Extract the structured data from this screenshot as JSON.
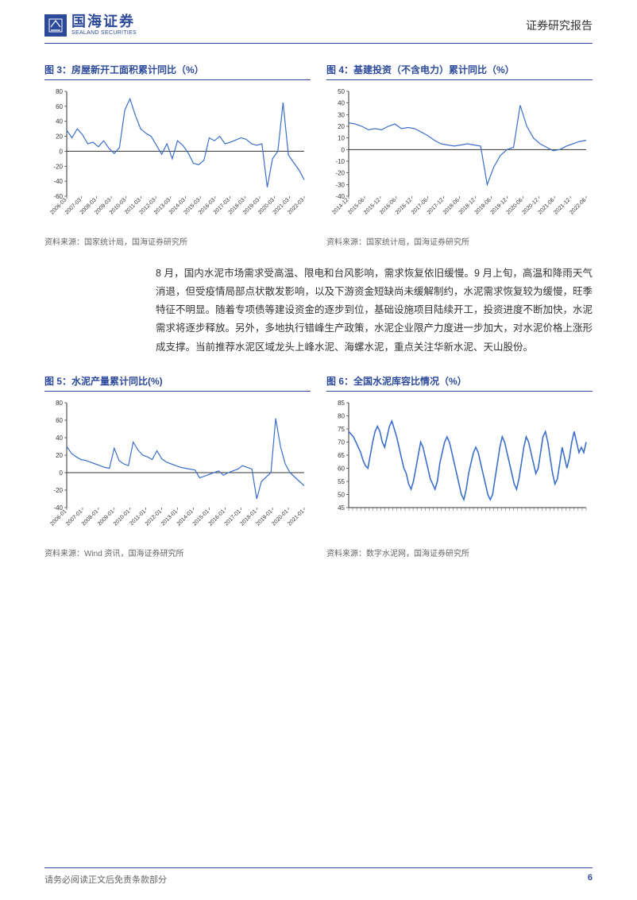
{
  "header": {
    "logo_cn": "国海证券",
    "logo_en": "SEALAND SECURITIES",
    "report_type": "证券研究报告",
    "logo_color": "#2d4a9a"
  },
  "paragraph": "8 月，国内水泥市场需求受高温、限电和台风影响，需求恢复依旧缓慢。9 月上旬，高温和降雨天气消退，但受疫情局部点状散发影响，以及下游资金短缺尚未缓解制约，水泥需求恢复较为缓慢，旺季特征不明显。随着专项债等建设资金的逐步到位，基础设施项目陆续开工，投资进度不断加快，水泥需求将逐步释放。另外，多地执行错峰生产政策，水泥企业限产力度进一步加大，对水泥价格上涨形成支撑。当前推荐水泥区域龙头上峰水泥、海螺水泥，重点关注华新水泥、天山股份。",
  "charts": {
    "c3": {
      "title": "图 3：房屋新开工面积累计同比（%）",
      "source": "资料来源：国家统计局，国海证券研究所",
      "type": "line",
      "ylim": [
        -60,
        80
      ],
      "ytick_step": 20,
      "x_labels": [
        "2006-03",
        "2007-03",
        "2008-03",
        "2009-03",
        "2010-03",
        "2011-03",
        "2012-03",
        "2013-03",
        "2014-03",
        "2015-03",
        "2016-03",
        "2017-03",
        "2018-03",
        "2019-03",
        "2020-03",
        "2021-03",
        "2022-03"
      ],
      "line_color": "#3b6fc9",
      "grid_color": "#333333",
      "background_color": "#ffffff",
      "axis_fontsize": 8,
      "values": [
        28,
        18,
        30,
        22,
        10,
        12,
        6,
        14,
        4,
        -3,
        5,
        55,
        70,
        48,
        30,
        24,
        20,
        8,
        -4,
        10,
        -10,
        14,
        8,
        -2,
        -16,
        -18,
        -12,
        18,
        14,
        20,
        10,
        12,
        15,
        18,
        16,
        10,
        8,
        10,
        -48,
        -10,
        0,
        65,
        -5,
        -15,
        -25,
        -38
      ]
    },
    "c4": {
      "title": "图 4：基建投资（不含电力）累计同比（%）",
      "source": "资料来源：国家统计局，国海证券研究所",
      "type": "line",
      "ylim": [
        -40,
        50
      ],
      "ytick_step": 10,
      "x_labels": [
        "2014-12",
        "2015-06",
        "2015-12",
        "2016-06",
        "2016-12",
        "2017-06",
        "2017-12",
        "2018-06",
        "2018-12",
        "2019-06",
        "2019-12",
        "2020-06",
        "2020-12",
        "2021-06",
        "2021-12",
        "2022-06"
      ],
      "line_color": "#3b6fc9",
      "grid_color": "#333333",
      "background_color": "#ffffff",
      "axis_fontsize": 8,
      "values": [
        23,
        22,
        20,
        17,
        18,
        17,
        20,
        22,
        18,
        19,
        18,
        15,
        12,
        8,
        5,
        4,
        3,
        4,
        5,
        4,
        3,
        -30,
        -15,
        -5,
        0,
        2,
        38,
        20,
        10,
        5,
        2,
        -1,
        0,
        3,
        5,
        7,
        8
      ]
    },
    "c5": {
      "title": "图 5：水泥产量累计同比(%)",
      "source": "资料来源：Wind 资讯，国海证券研究所",
      "type": "line",
      "ylim": [
        -40,
        80
      ],
      "ytick_step": 20,
      "x_labels": [
        "2006-01",
        "2007-01",
        "2008-01",
        "2009-01",
        "2010-01",
        "2011-01",
        "2012-01",
        "2013-01",
        "2014-01",
        "2015-01",
        "2016-01",
        "2017-01",
        "2018-01",
        "2019-01",
        "2020-01",
        "2021-01"
      ],
      "line_color": "#3b6fc9",
      "grid_color": "#333333",
      "background_color": "#ffffff",
      "axis_fontsize": 8,
      "values": [
        30,
        22,
        18,
        15,
        14,
        12,
        10,
        8,
        6,
        5,
        28,
        14,
        10,
        8,
        35,
        26,
        20,
        18,
        15,
        25,
        16,
        12,
        10,
        8,
        6,
        5,
        4,
        3,
        -6,
        -4,
        -2,
        0,
        2,
        -3,
        0,
        2,
        4,
        8,
        6,
        4,
        -30,
        -10,
        -5,
        0,
        62,
        30,
        10,
        0,
        -5,
        -10,
        -15
      ]
    },
    "c6": {
      "title": "图 6：全国水泥库容比情况（%）",
      "source": "资料来源：数字水泥网，国海证券研究所",
      "type": "line",
      "ylim": [
        45,
        85
      ],
      "ytick_step": 5,
      "x_labels": [],
      "line_color": "#3b6fc9",
      "grid_color": "#333333",
      "background_color": "#ffffff",
      "axis_fontsize": 8,
      "line_width": 1.6,
      "values": [
        74,
        73,
        72,
        70,
        68,
        66,
        63,
        61,
        60,
        65,
        70,
        74,
        76,
        74,
        70,
        68,
        72,
        76,
        78,
        75,
        72,
        68,
        64,
        60,
        58,
        54,
        52,
        55,
        60,
        65,
        70,
        68,
        64,
        60,
        56,
        54,
        52,
        55,
        62,
        66,
        70,
        72,
        70,
        66,
        62,
        58,
        54,
        50,
        48,
        52,
        58,
        62,
        66,
        68,
        66,
        62,
        58,
        54,
        50,
        48,
        50,
        56,
        62,
        68,
        72,
        70,
        66,
        62,
        58,
        54,
        52,
        56,
        62,
        68,
        72,
        70,
        66,
        62,
        58,
        60,
        66,
        72,
        74,
        70,
        64,
        58,
        54,
        56,
        62,
        68,
        64,
        60,
        64,
        70,
        74,
        70,
        66,
        68,
        66,
        70
      ]
    }
  },
  "footer": {
    "disclaimer": "请务必阅读正文后免责条款部分",
    "page": "6"
  }
}
